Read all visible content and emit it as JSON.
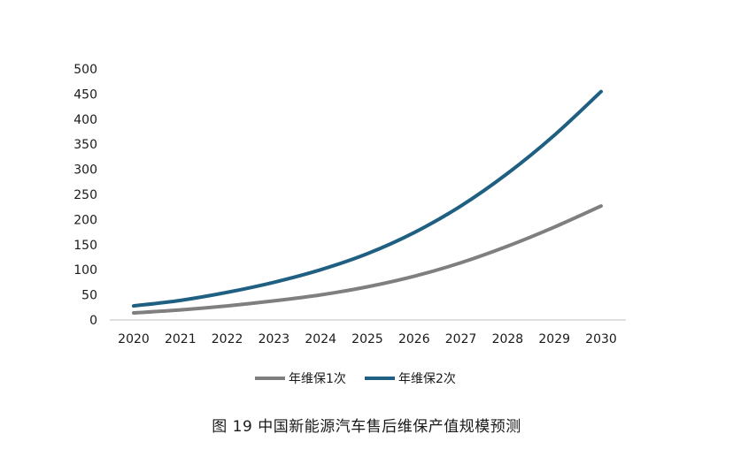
{
  "chart_data": {
    "type": "line",
    "categories": [
      "2020",
      "2021",
      "2022",
      "2023",
      "2024",
      "2025",
      "2026",
      "2027",
      "2028",
      "2029",
      "2030"
    ],
    "series": [
      {
        "name": "年维保1次",
        "color": "#7f7f7f",
        "values": [
          14,
          20,
          28,
          38,
          50,
          66,
          87,
          114,
          147,
          185,
          227
        ]
      },
      {
        "name": "年维保2次",
        "color": "#1f5f82",
        "values": [
          28,
          39,
          55,
          75,
          100,
          132,
          174,
          227,
          292,
          368,
          455
        ]
      }
    ],
    "yticks": [
      "0",
      "50",
      "100",
      "150",
      "200",
      "250",
      "300",
      "350",
      "400",
      "450",
      "500"
    ],
    "ylim": [
      0,
      500
    ],
    "grid": false,
    "legend_position": "bottom"
  },
  "caption": "图 19  中国新能源汽车售后维保产值规模预测"
}
